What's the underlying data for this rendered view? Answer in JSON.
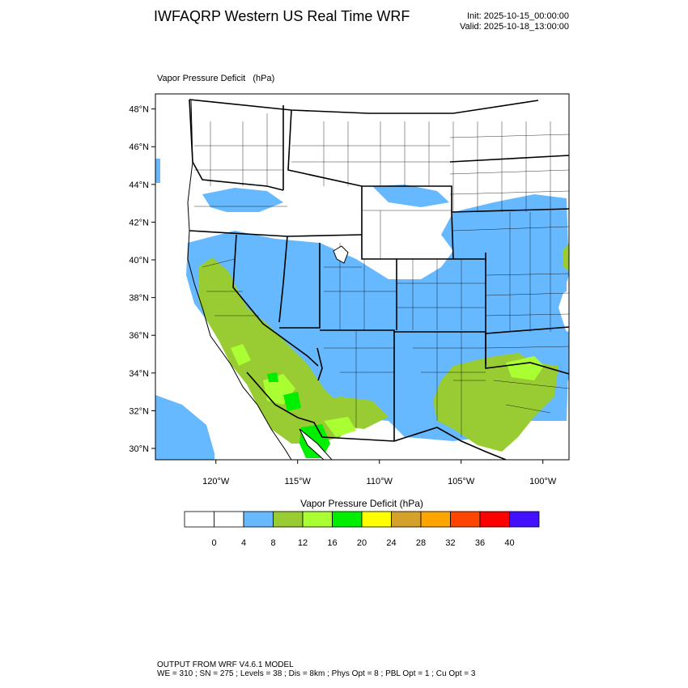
{
  "header": {
    "title": "IWFAQRP Western US Real Time WRF",
    "init": "Init: 2025-10-15_00:00:00",
    "valid": "Valid: 2025-10-18_13:00:00"
  },
  "plot": {
    "label": "Vapor Pressure Deficit   (hPa)",
    "lat_labels": [
      "30°N",
      "32°N",
      "34°N",
      "36°N",
      "38°N",
      "40°N",
      "42°N",
      "44°N",
      "46°N",
      "48°N"
    ],
    "lon_labels": [
      "120°W",
      "115°W",
      "110°W",
      "105°W",
      "100°W"
    ],
    "lat_range": [
      29.4,
      48.8
    ],
    "lon_range": [
      -123.7,
      -98.4
    ]
  },
  "colorbar": {
    "title": "Vapor Pressure Deficit  (hPa)",
    "ticks": [
      "0",
      "4",
      "8",
      "12",
      "16",
      "20",
      "24",
      "28",
      "32",
      "36",
      "40"
    ],
    "colors": [
      "#ffffff",
      "#ffffff",
      "#66b8ff",
      "#99cc33",
      "#aaff33",
      "#00ee00",
      "#ffff00",
      "#d4a12a",
      "#ffa500",
      "#ff4500",
      "#ff0000",
      "#4411ff"
    ]
  },
  "footer": {
    "line1": "OUTPUT FROM WRF V4.6.1 MODEL",
    "line2": "WE = 310 ; SN = 275 ; Levels = 38 ; Dis = 8km ; Phys Opt = 8 ; PBL Opt = 1 ; Cu Opt = 3"
  }
}
